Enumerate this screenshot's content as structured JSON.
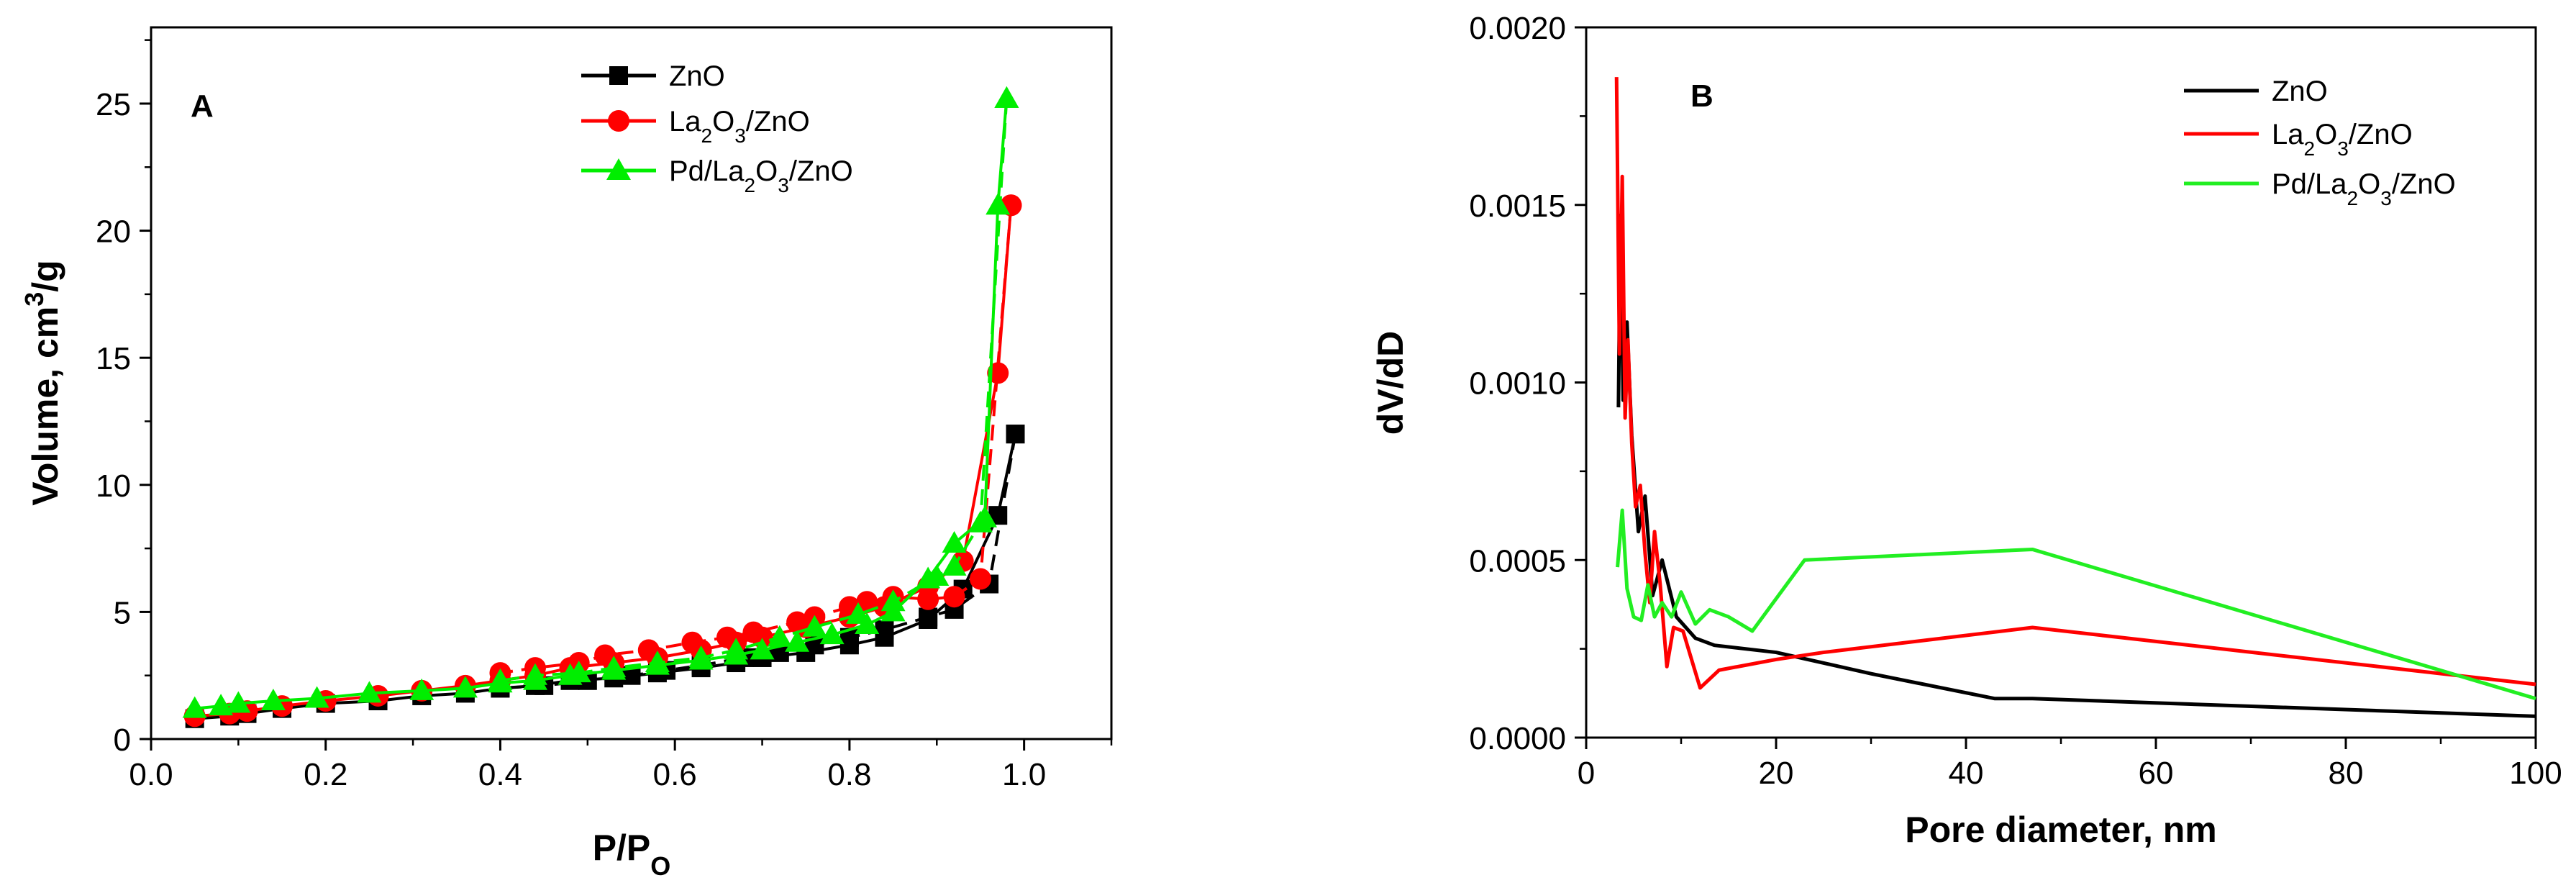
{
  "chart_data": [
    {
      "type": "line",
      "panel_label": "A",
      "xlabel": "P/P",
      "xlabel_sub": "O",
      "ylabel": "Volume, cm",
      "ylabel_sup": "3",
      "ylabel_tail": "/g",
      "xlim": [
        0.0,
        1.1
      ],
      "ylim": [
        0,
        28
      ],
      "x_ticks": [
        0.0,
        0.2,
        0.4,
        0.6,
        0.8,
        1.0
      ],
      "x_tick_labels": [
        "0.0",
        "0.2",
        "0.4",
        "0.6",
        "0.8",
        "1.0"
      ],
      "y_ticks": [
        0,
        5,
        10,
        15,
        20,
        25
      ],
      "y_tick_labels": [
        "0",
        "5",
        "10",
        "15",
        "20",
        "25"
      ],
      "legend": {
        "placement": "top-center",
        "entries": [
          {
            "base": "ZnO",
            "parts": [
              [
                "ZnO",
                ""
              ]
            ]
          },
          {
            "base": "La2O3/ZnO",
            "parts": [
              [
                "La",
                ""
              ],
              [
                "2",
                "sub"
              ],
              [
                "O",
                ""
              ],
              [
                "3",
                "sub"
              ],
              [
                "/ZnO",
                ""
              ]
            ]
          },
          {
            "base": "Pd/La2O3/ZnO",
            "parts": [
              [
                "Pd/La",
                ""
              ],
              [
                "2",
                "sub"
              ],
              [
                "O",
                ""
              ],
              [
                "3",
                "sub"
              ],
              [
                "/ZnO",
                ""
              ]
            ]
          }
        ]
      },
      "series": [
        {
          "name": "ZnO",
          "color": "#000000",
          "marker": "square",
          "adsorption": {
            "x": [
              0.05,
              0.09,
              0.11,
              0.15,
              0.2,
              0.26,
              0.31,
              0.36,
              0.4,
              0.44,
              0.48,
              0.53,
              0.58,
              0.63,
              0.67,
              0.7,
              0.75,
              0.8,
              0.84,
              0.89,
              0.93,
              0.97,
              0.99
            ],
            "y": [
              0.8,
              0.9,
              1.0,
              1.2,
              1.4,
              1.5,
              1.7,
              1.8,
              2.0,
              2.1,
              2.3,
              2.4,
              2.6,
              2.8,
              3.0,
              3.2,
              3.4,
              3.7,
              4.0,
              4.7,
              5.9,
              8.8,
              12.0
            ]
          },
          "desorption": {
            "x": [
              0.99,
              0.96,
              0.92,
              0.89,
              0.84,
              0.8,
              0.76,
              0.72,
              0.68,
              0.63,
              0.59,
              0.55,
              0.5,
              0.45,
              0.4
            ],
            "y": [
              12.0,
              6.1,
              5.1,
              4.8,
              4.3,
              4.0,
              3.7,
              3.4,
              3.2,
              2.9,
              2.7,
              2.5,
              2.3,
              2.1,
              2.0
            ]
          }
        },
        {
          "name": "La2O3/ZnO",
          "color": "#ff0000",
          "marker": "circle",
          "adsorption": {
            "x": [
              0.05,
              0.09,
              0.11,
              0.15,
              0.2,
              0.26,
              0.31,
              0.36,
              0.4,
              0.44,
              0.48,
              0.53,
              0.58,
              0.63,
              0.67,
              0.7,
              0.75,
              0.8,
              0.84,
              0.89,
              0.93,
              0.97,
              0.985
            ],
            "y": [
              0.9,
              1.0,
              1.1,
              1.3,
              1.5,
              1.7,
              1.9,
              2.1,
              2.3,
              2.5,
              2.8,
              3.0,
              3.2,
              3.5,
              3.8,
              4.0,
              4.4,
              4.8,
              5.2,
              6.0,
              7.0,
              14.4,
              21.0
            ]
          },
          "desorption": {
            "x": [
              0.985,
              0.95,
              0.92,
              0.89,
              0.85,
              0.82,
              0.8,
              0.76,
              0.74,
              0.69,
              0.66,
              0.62,
              0.57,
              0.52,
              0.49,
              0.44,
              0.4
            ],
            "y": [
              21.0,
              6.3,
              5.6,
              5.5,
              5.6,
              5.4,
              5.2,
              4.8,
              4.6,
              4.2,
              4.0,
              3.8,
              3.5,
              3.3,
              3.0,
              2.8,
              2.6
            ]
          }
        },
        {
          "name": "Pd/La2O3/ZnO",
          "color": "#00ee00",
          "marker": "triangle",
          "adsorption": {
            "x": [
              0.05,
              0.08,
              0.1,
              0.14,
              0.19,
              0.25,
              0.31,
              0.36,
              0.4,
              0.44,
              0.48,
              0.53,
              0.58,
              0.63,
              0.67,
              0.7,
              0.74,
              0.78,
              0.82,
              0.85,
              0.89,
              0.92,
              0.955,
              0.97,
              0.98
            ],
            "y": [
              1.2,
              1.3,
              1.4,
              1.5,
              1.6,
              1.8,
              1.9,
              2.0,
              2.2,
              2.3,
              2.5,
              2.7,
              2.9,
              3.1,
              3.3,
              3.5,
              3.8,
              4.1,
              4.5,
              5.0,
              6.3,
              7.7,
              8.7,
              21.0,
              25.2
            ]
          },
          "desorption": {
            "x": [
              0.98,
              0.95,
              0.92,
              0.9,
              0.85,
              0.81,
              0.76,
              0.72,
              0.67,
              0.63,
              0.58,
              0.53,
              0.49,
              0.44,
              0.4
            ],
            "y": [
              25.2,
              8.5,
              6.8,
              6.4,
              5.4,
              4.9,
              4.4,
              4.0,
              3.5,
              3.2,
              3.0,
              2.8,
              2.6,
              2.5,
              2.3
            ]
          }
        }
      ]
    },
    {
      "type": "line",
      "panel_label": "B",
      "xlabel": "Pore diameter, nm",
      "ylabel": "dV/dD",
      "xlim": [
        0,
        100
      ],
      "ylim": [
        0,
        0.002
      ],
      "x_ticks": [
        0,
        20,
        40,
        60,
        80,
        100
      ],
      "x_tick_labels": [
        "0",
        "20",
        "40",
        "60",
        "80",
        "100"
      ],
      "y_ticks": [
        0,
        0.0005,
        0.001,
        0.0015,
        0.002
      ],
      "y_tick_labels": [
        "0.0000",
        "0.0005",
        "0.0010",
        "0.0015",
        "0.0020"
      ],
      "legend": {
        "placement": "top-right",
        "entries": [
          {
            "base": "ZnO",
            "parts": [
              [
                "ZnO",
                ""
              ]
            ]
          },
          {
            "base": "La2O3/ZnO",
            "parts": [
              [
                "La",
                ""
              ],
              [
                "2",
                "sub"
              ],
              [
                "O",
                ""
              ],
              [
                "3",
                "sub"
              ],
              [
                "/ZnO",
                ""
              ]
            ]
          },
          {
            "base": "Pd/La2O3/ZnO",
            "parts": [
              [
                "Pd/La",
                ""
              ],
              [
                "2",
                "sub"
              ],
              [
                "O",
                ""
              ],
              [
                "3",
                "sub"
              ],
              [
                "/ZnO",
                ""
              ]
            ]
          }
        ]
      },
      "series": [
        {
          "name": "ZnO",
          "color": "#000000",
          "x": [
            3.4,
            3.6,
            3.9,
            4.3,
            4.8,
            5.5,
            6.2,
            7.0,
            8.0,
            9.5,
            11.5,
            13.5,
            20,
            30,
            43,
            47,
            100
          ],
          "y": [
            0.00093,
            0.00147,
            0.00095,
            0.00117,
            0.00085,
            0.00058,
            0.00068,
            0.0004,
            0.0005,
            0.00034,
            0.00028,
            0.00026,
            0.00024,
            0.00018,
            0.00011,
            0.00011,
            6e-05
          ]
        },
        {
          "name": "La2O3/ZnO",
          "color": "#ff0000",
          "x": [
            3.2,
            3.5,
            3.8,
            4.1,
            4.4,
            4.8,
            5.2,
            5.7,
            6.2,
            6.7,
            7.2,
            7.8,
            8.5,
            9.2,
            10.2,
            12.0,
            14.0,
            20,
            25,
            47,
            100
          ],
          "y": [
            0.00186,
            0.00108,
            0.00158,
            0.0009,
            0.00112,
            0.00083,
            0.00065,
            0.00071,
            0.00052,
            0.00038,
            0.00058,
            0.00043,
            0.0002,
            0.00031,
            0.0003,
            0.00014,
            0.00019,
            0.00022,
            0.00024,
            0.00031,
            0.00015
          ]
        },
        {
          "name": "Pd/La2O3/ZnO",
          "color": "#22ee22",
          "x": [
            3.3,
            3.8,
            4.3,
            5.0,
            5.8,
            6.5,
            7.2,
            8.0,
            9.0,
            10.0,
            11.5,
            13.0,
            15.0,
            17.5,
            23,
            47,
            100
          ],
          "y": [
            0.00048,
            0.00064,
            0.00042,
            0.00034,
            0.00033,
            0.00043,
            0.00034,
            0.00038,
            0.00034,
            0.00041,
            0.00032,
            0.00036,
            0.00034,
            0.0003,
            0.0005,
            0.00053,
            0.00011
          ]
        }
      ]
    }
  ]
}
